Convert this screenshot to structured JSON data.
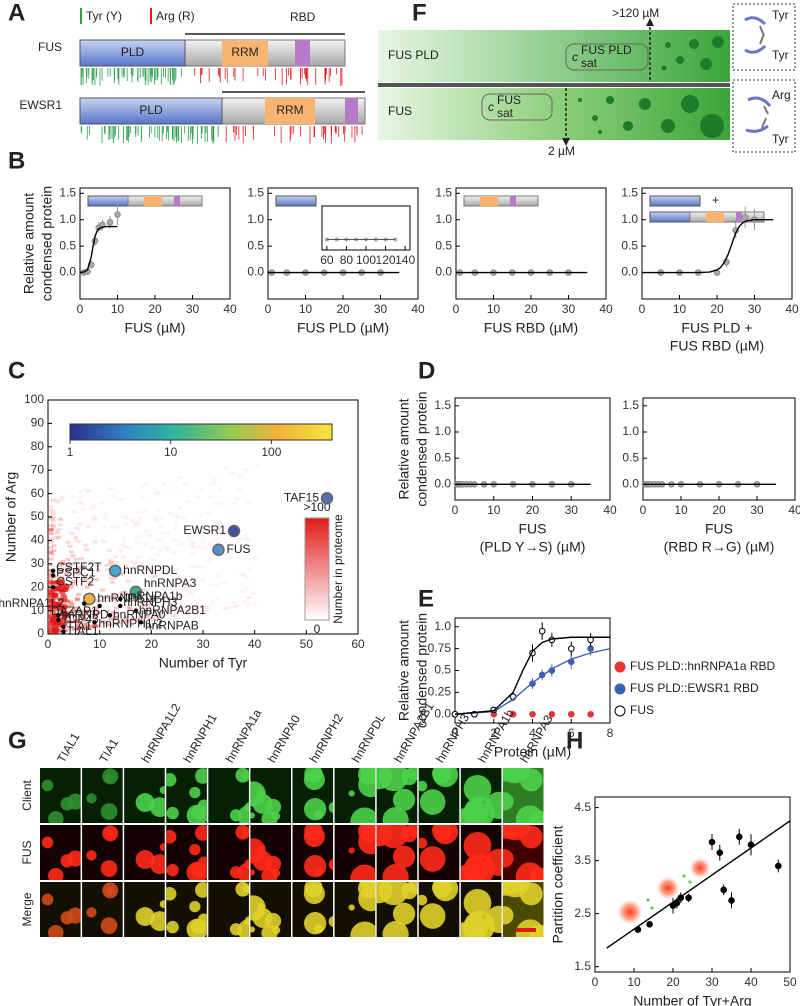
{
  "panel_labels": [
    "A",
    "B",
    "C",
    "D",
    "E",
    "F",
    "G",
    "H"
  ],
  "domains": {
    "legend": [
      "Tyr (Y)",
      "Arg (R)"
    ],
    "rbd_label": "RBD",
    "proteins": [
      {
        "name": "FUS",
        "domains": [
          "PLD",
          "RRM"
        ]
      },
      {
        "name": "EWSR1",
        "domains": [
          "PLD",
          "RRM"
        ]
      }
    ]
  },
  "phase_schematic": {
    "rows": [
      "FUS PLD",
      "FUS"
    ],
    "high": ">120 µM",
    "low": "2 µM",
    "csat": "c",
    "csat_sub": "sat",
    "csat_sup": [
      "FUS PLD",
      "FUS"
    ],
    "residue_labels": [
      "Tyr",
      "Tyr",
      "Arg",
      "Tyr"
    ]
  },
  "micrographs": {
    "clients": [
      "TIAL1",
      "TIA1",
      "hnRNPA1L2",
      "hnRNPH1",
      "hnRNPA1a",
      "hnRNPA0",
      "hnRNPH2",
      "hnRNPDL",
      "hnRNPA2B1",
      "hnRNPH3",
      "hnRNPA1b",
      "hnRNPA3"
    ],
    "rows": [
      "Client",
      "FUS",
      "Merge"
    ]
  },
  "chart_data": [
    {
      "type": "line",
      "xlabel": [
        "FUS (µM)"
      ],
      "ylabel": [
        "Relative amount",
        "condensed protein"
      ],
      "xlim": [
        0,
        40
      ],
      "ylim": [
        -0.5,
        1.6
      ],
      "xticks": [
        0,
        10,
        20,
        30,
        40
      ],
      "yticks": [
        {
          "value": 0,
          "label": "0.0"
        },
        0.5,
        {
          "value": 1,
          "label": "1.0"
        },
        1.5
      ],
      "series": [
        {
          "kind": "points",
          "color": "#aaaaaa",
          "x": [
            1,
            2,
            3,
            4,
            5,
            6,
            8,
            10
          ],
          "values": [
            0,
            0.02,
            0.15,
            0.6,
            0.85,
            0.9,
            0.95,
            1.1
          ],
          "errors": [
            0.02,
            0.03,
            0.08,
            0.1,
            0.1,
            0.1,
            0.12,
            0.2
          ]
        },
        {
          "kind": "fit",
          "color": "#000000",
          "x": [
            0,
            1,
            2,
            3,
            3.5,
            4,
            4.5,
            5,
            6,
            7,
            8,
            9,
            10
          ],
          "values": [
            0,
            0.01,
            0.05,
            0.3,
            0.5,
            0.68,
            0.78,
            0.83,
            0.86,
            0.87,
            0.87,
            0.87,
            0.87
          ]
        }
      ]
    },
    {
      "type": "line",
      "xlabel": [
        "FUS PLD (µM)"
      ],
      "xlim": [
        0,
        40
      ],
      "ylim": [
        -0.5,
        1.6
      ],
      "xticks": [
        0,
        10,
        20,
        30,
        40
      ],
      "yticks": [
        {
          "value": 0,
          "label": "0.0"
        },
        0.5,
        {
          "value": 1,
          "label": "1.0"
        },
        1.5
      ],
      "series": [
        {
          "kind": "points",
          "color": "#aaaaaa",
          "x": [
            1,
            5,
            10,
            15,
            20,
            25,
            30
          ],
          "values": [
            0,
            0,
            0,
            0,
            0,
            0,
            0
          ]
        },
        {
          "kind": "fit",
          "color": "#000000",
          "x": [
            0,
            35
          ],
          "values": [
            0,
            0
          ]
        }
      ],
      "inset": {
        "xlim": [
          55,
          145
        ],
        "ylim": [
          -0.5,
          1.6
        ],
        "xticks": [
          60,
          80,
          100,
          120,
          140
        ],
        "x": [
          60,
          70,
          80,
          90,
          100,
          110,
          120,
          130
        ],
        "values": [
          0,
          0,
          0,
          0,
          0,
          0,
          0,
          0
        ]
      }
    },
    {
      "type": "line",
      "xlabel": [
        "FUS RBD (µM)"
      ],
      "xlim": [
        0,
        40
      ],
      "ylim": [
        -0.5,
        1.6
      ],
      "xticks": [
        0,
        10,
        20,
        30,
        40
      ],
      "yticks": [
        {
          "value": 0,
          "label": "0.0"
        },
        0.5,
        {
          "value": 1,
          "label": "1.0"
        },
        1.5
      ],
      "series": [
        {
          "kind": "points",
          "color": "#aaaaaa",
          "x": [
            1,
            5,
            10,
            15,
            20,
            25,
            30
          ],
          "values": [
            0,
            0,
            0,
            0,
            0,
            0,
            0
          ]
        },
        {
          "kind": "fit",
          "color": "#000000",
          "x": [
            0,
            35
          ],
          "values": [
            0,
            0
          ]
        }
      ]
    },
    {
      "type": "line",
      "xlabel": [
        "FUS PLD +",
        "FUS RBD (µM)"
      ],
      "plus": "+",
      "xlim": [
        0,
        40
      ],
      "ylim": [
        -0.5,
        1.6
      ],
      "xticks": [
        0,
        10,
        20,
        30,
        40
      ],
      "yticks": [
        {
          "value": 0,
          "label": "0.0"
        },
        0.5,
        {
          "value": 1,
          "label": "1.0"
        },
        1.5
      ],
      "series": [
        {
          "kind": "points",
          "color": "#aaaaaa",
          "x": [
            5,
            10,
            15,
            20,
            22.5,
            25,
            27.5,
            30
          ],
          "values": [
            0,
            0,
            0,
            0,
            0.2,
            0.8,
            1.05,
            1.0
          ],
          "errors": [
            0.01,
            0.01,
            0.01,
            0.02,
            0.1,
            0.15,
            0.2,
            0.2
          ]
        },
        {
          "kind": "fit",
          "color": "#000000",
          "x": [
            0,
            15,
            18,
            20,
            21,
            22,
            23,
            24,
            25,
            26,
            27,
            28,
            30,
            35
          ],
          "values": [
            0,
            0,
            0.01,
            0.05,
            0.1,
            0.2,
            0.35,
            0.55,
            0.75,
            0.88,
            0.95,
            0.98,
            1.0,
            1.0
          ]
        }
      ]
    },
    {
      "type": "scatter",
      "xlabel": [
        "Number of Tyr"
      ],
      "ylabel": [
        "Number of Arg"
      ],
      "xlim": [
        0,
        60
      ],
      "ylim": [
        0,
        100
      ],
      "xticks": [
        0,
        10,
        20,
        30,
        40,
        50,
        60
      ],
      "yticks": [
        0,
        10,
        20,
        30,
        40,
        50,
        60,
        70,
        80,
        90,
        100
      ],
      "colorbar": {
        "lim": [
          1,
          400
        ],
        "log": true,
        "ticks": [
          1,
          10,
          100
        ],
        "colors": [
          "#2b2f8f",
          "#2f7fc0",
          "#2fb5a0",
          "#8ccb55",
          "#f6b23a",
          "#f7e63a"
        ]
      },
      "colorbar2": {
        "lim": [
          0,
          100
        ],
        "ticks": [
          0,
          {
            "value": 100,
            "label": ">100"
          }
        ],
        "title": "Number in proteome"
      },
      "series": [
        {
          "kind": "highlighted",
          "labels": [
            "TAF15",
            "EWSR1",
            "FUS",
            "hnRNPDL",
            "hnRNPA3",
            "hnRNPA1a"
          ],
          "x": [
            54,
            36,
            33,
            13,
            17,
            8
          ],
          "values": [
            58,
            44,
            36,
            27,
            18,
            15
          ],
          "colors": [
            "#5a6db3",
            "#3f51a0",
            "#5a8fd0",
            "#45a8d8",
            "#3fae8a",
            "#f2b33d"
          ]
        },
        {
          "kind": "others",
          "color": "#000000",
          "labels": [
            "CSTF2T",
            "PSPC1",
            "CSTF2",
            "hnRNPA1L2",
            "DAZAP1",
            "hnRNPA1b",
            "hnRNPH3",
            "hnRNPA2B1",
            "hnRNPA0",
            "hnRNPD",
            "TDP43",
            "TIA1",
            "TIAL1",
            "hnRNPH1/2",
            "hnRNPAB"
          ],
          "x": [
            1,
            1,
            1,
            7,
            10,
            14,
            14,
            17,
            12,
            2,
            2,
            3,
            3,
            9,
            18
          ],
          "values": [
            27,
            25,
            20,
            13,
            12,
            15,
            12,
            10,
            8,
            8,
            6,
            3,
            1,
            5,
            5
          ]
        }
      ]
    },
    {
      "type": "line",
      "xlabel": [
        "FUS",
        "(PLD Y→S) (µM)"
      ],
      "ylabel": [
        "Relative amount",
        "condensed protein"
      ],
      "xlim": [
        0,
        40
      ],
      "ylim": [
        -0.3,
        1.65
      ],
      "xticks": [
        0,
        10,
        20,
        30,
        40
      ],
      "yticks": [
        {
          "value": 0,
          "label": "0.0"
        },
        0.5,
        {
          "value": 1,
          "label": "1.0"
        },
        1.5
      ],
      "series": [
        {
          "kind": "points",
          "color": "#aaaaaa",
          "x": [
            0.5,
            1,
            1.5,
            2,
            3,
            4,
            5,
            7.5,
            10,
            15,
            20,
            25,
            30
          ],
          "values": [
            0,
            0,
            0,
            0,
            0,
            0,
            0,
            0,
            0,
            0,
            0,
            0,
            0
          ]
        },
        {
          "kind": "fit",
          "color": "#000000",
          "x": [
            0,
            35
          ],
          "values": [
            0,
            0
          ]
        }
      ]
    },
    {
      "type": "line",
      "xlabel": [
        "FUS",
        "(RBD R→G) (µM)"
      ],
      "xlim": [
        0,
        40
      ],
      "ylim": [
        -0.3,
        1.65
      ],
      "xticks": [
        0,
        10,
        20,
        30,
        40
      ],
      "yticks": [
        {
          "value": 0,
          "label": "0.0"
        },
        0.5,
        {
          "value": 1,
          "label": "1.0"
        },
        1.5
      ],
      "series": [
        {
          "kind": "points",
          "color": "#aaaaaa",
          "x": [
            0.5,
            1,
            1.5,
            2,
            3,
            4,
            5,
            7.5,
            10,
            15,
            20,
            25,
            30
          ],
          "values": [
            0,
            0,
            0,
            0,
            0,
            0,
            0,
            0,
            0,
            0,
            0,
            0,
            0
          ]
        },
        {
          "kind": "fit",
          "color": "#000000",
          "x": [
            0,
            35
          ],
          "values": [
            0,
            0
          ]
        }
      ]
    },
    {
      "type": "line",
      "xlabel": [
        "Protein (µM)"
      ],
      "ylabel": [
        "Relative amount",
        "condensed protein"
      ],
      "xlim": [
        0,
        8
      ],
      "ylim": [
        -0.1,
        1.1
      ],
      "xticks": [
        0,
        2,
        4,
        6,
        8
      ],
      "yticks": [
        {
          "value": 0,
          "label": "0.0"
        },
        0.25,
        0.5,
        0.75,
        {
          "value": 1,
          "label": "1.0"
        }
      ],
      "series": [
        {
          "kind": "points",
          "name": "FUS PLD::hnRNPA1a RBD",
          "color": "#e8333a",
          "x": [
            0,
            1,
            2,
            3,
            4,
            5,
            6,
            7
          ],
          "values": [
            0,
            0,
            0,
            0,
            0,
            0,
            0,
            0
          ]
        },
        {
          "kind": "points",
          "name": "FUS PLD::EWSR1 RBD",
          "color": "#3f5fb0",
          "x": [
            0,
            1,
            2,
            3,
            4,
            4.5,
            5,
            6,
            7
          ],
          "values": [
            0,
            0,
            0.05,
            0.2,
            0.35,
            0.45,
            0.5,
            0.6,
            0.75
          ],
          "errors": [
            0.01,
            0.02,
            0.03,
            0.05,
            0.06,
            0.06,
            0.07,
            0.08,
            0.08
          ]
        },
        {
          "kind": "points",
          "name": "FUS",
          "color": "#000000",
          "open": true,
          "x": [
            0,
            1,
            2,
            3,
            4,
            4.5,
            5,
            6,
            7
          ],
          "values": [
            0,
            0,
            0.05,
            0.2,
            0.7,
            0.95,
            0.85,
            0.75,
            0.85
          ],
          "errors": [
            0.01,
            0.02,
            0.03,
            0.05,
            0.1,
            0.1,
            0.08,
            0.08,
            0.08
          ]
        },
        {
          "kind": "fit",
          "color": "#3f5fb0",
          "x": [
            0,
            2,
            3,
            4,
            5,
            6,
            7,
            8
          ],
          "values": [
            0,
            0.03,
            0.17,
            0.36,
            0.52,
            0.63,
            0.7,
            0.75
          ]
        },
        {
          "kind": "fit",
          "color": "#000000",
          "x": [
            0,
            2,
            3,
            3.5,
            4,
            4.5,
            5,
            6,
            7,
            8
          ],
          "values": [
            0,
            0.04,
            0.25,
            0.5,
            0.72,
            0.82,
            0.86,
            0.88,
            0.88,
            0.88
          ]
        }
      ]
    },
    {
      "type": "scatter",
      "xlabel": [
        "Number of Tyr+Arg"
      ],
      "ylabel": [
        "Partition coefficient"
      ],
      "xlim": [
        0,
        50
      ],
      "ylim": [
        1.4,
        4.7
      ],
      "xticks": [
        0,
        10,
        20,
        30,
        40,
        50
      ],
      "yticks": [
        1.5,
        2.5,
        3.5,
        4.5
      ],
      "series": [
        {
          "kind": "points",
          "color": "#000000",
          "x": [
            11,
            14,
            20,
            21,
            22,
            24,
            30,
            32,
            33,
            35,
            37,
            40,
            47
          ],
          "values": [
            2.2,
            2.3,
            2.65,
            2.7,
            2.8,
            2.8,
            3.85,
            3.65,
            2.95,
            2.75,
            3.95,
            3.8,
            3.4
          ],
          "errors": [
            0.05,
            0.05,
            0.15,
            0.1,
            0.1,
            0.08,
            0.15,
            0.15,
            0.1,
            0.15,
            0.15,
            0.2,
            0.12
          ]
        },
        {
          "kind": "fit",
          "color": "#000000",
          "x": [
            3,
            50
          ],
          "values": [
            1.85,
            4.25
          ]
        }
      ]
    }
  ]
}
